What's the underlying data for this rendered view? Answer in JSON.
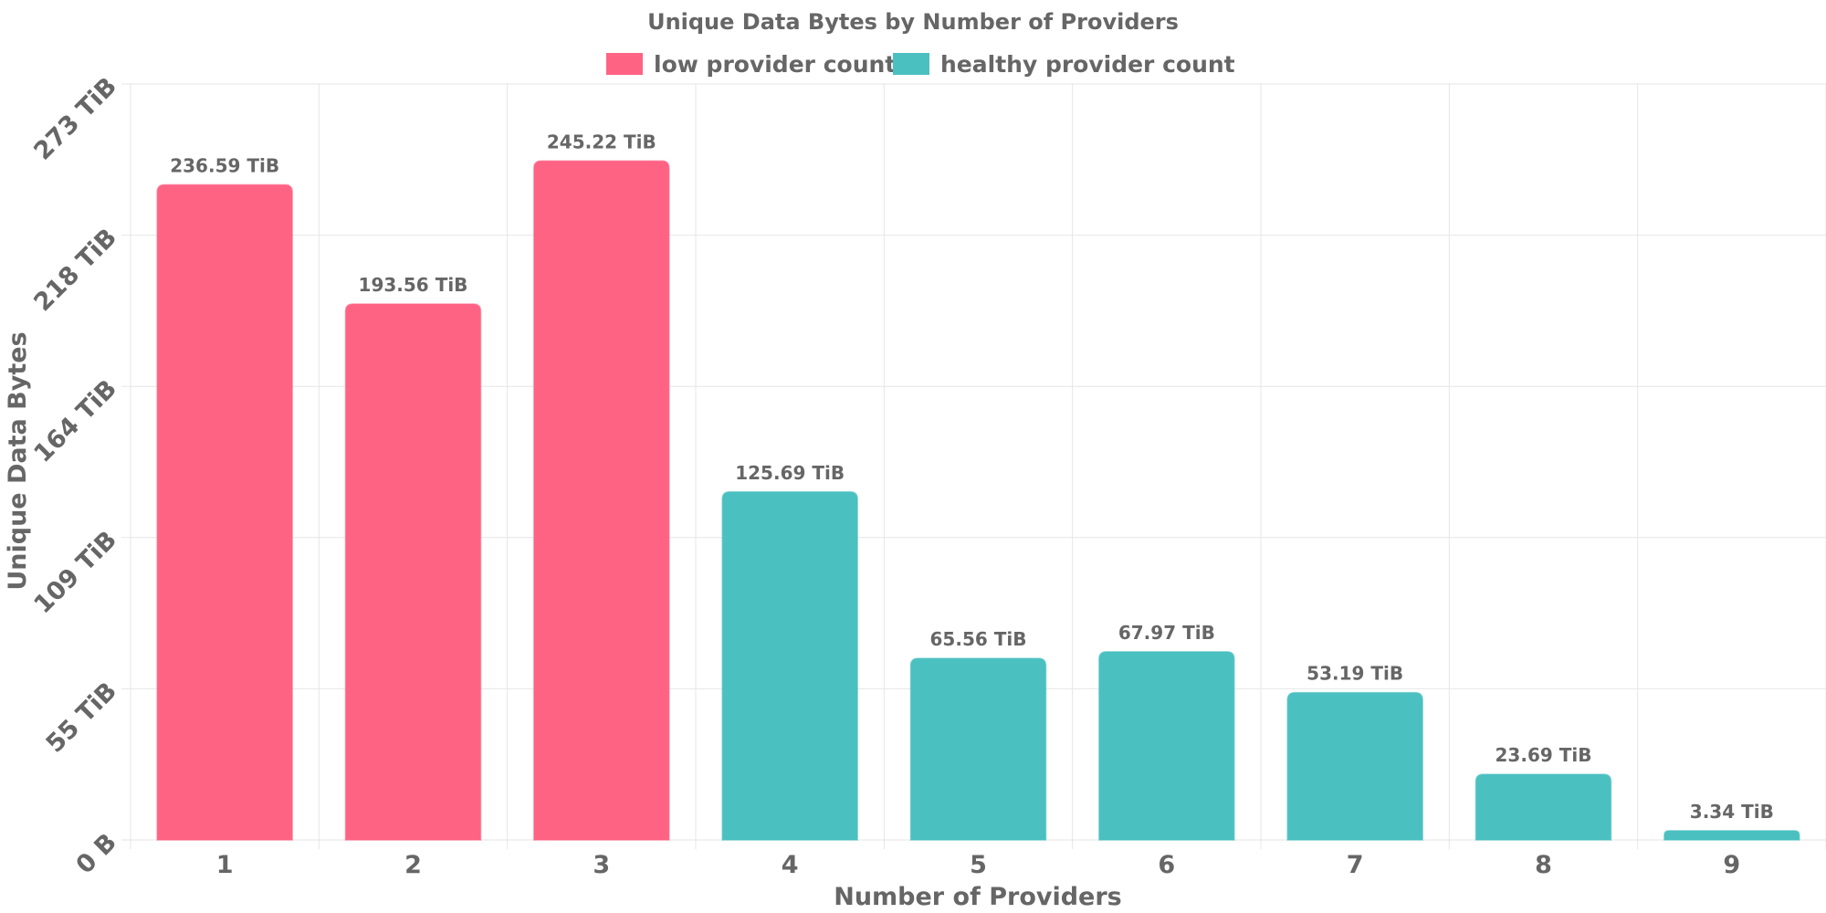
{
  "chart_data": {
    "type": "bar",
    "title": "Unique Data Bytes by Number of Providers",
    "xlabel": "Number of Providers",
    "ylabel": "Unique Data Bytes",
    "categories": [
      "1",
      "2",
      "3",
      "4",
      "5",
      "6",
      "7",
      "8",
      "9"
    ],
    "values": [
      236.59,
      193.56,
      245.22,
      125.69,
      65.56,
      67.97,
      53.19,
      23.69,
      3.34
    ],
    "value_labels": [
      "236.59 TiB",
      "193.56 TiB",
      "245.22 TiB",
      "125.69 TiB",
      "65.56 TiB",
      "67.97 TiB",
      "53.19 TiB",
      "23.69 TiB",
      "3.34 TiB"
    ],
    "series_group": [
      "low provider count",
      "low provider count",
      "low provider count",
      "healthy provider count",
      "healthy provider count",
      "healthy provider count",
      "healthy provider count",
      "healthy provider count",
      "healthy provider count"
    ],
    "legend": [
      {
        "name": "low provider count",
        "color": "#ff6384"
      },
      {
        "name": "healthy provider count",
        "color": "#4bc0c0"
      }
    ],
    "legend_position": "top",
    "yticks": [
      0,
      54.6,
      109.2,
      163.8,
      218.4,
      273
    ],
    "ytick_labels": [
      "0 B",
      "55 TiB",
      "109 TiB",
      "164 TiB",
      "218 TiB",
      "273 TiB"
    ],
    "ylim": [
      0,
      273
    ],
    "grid": true
  }
}
